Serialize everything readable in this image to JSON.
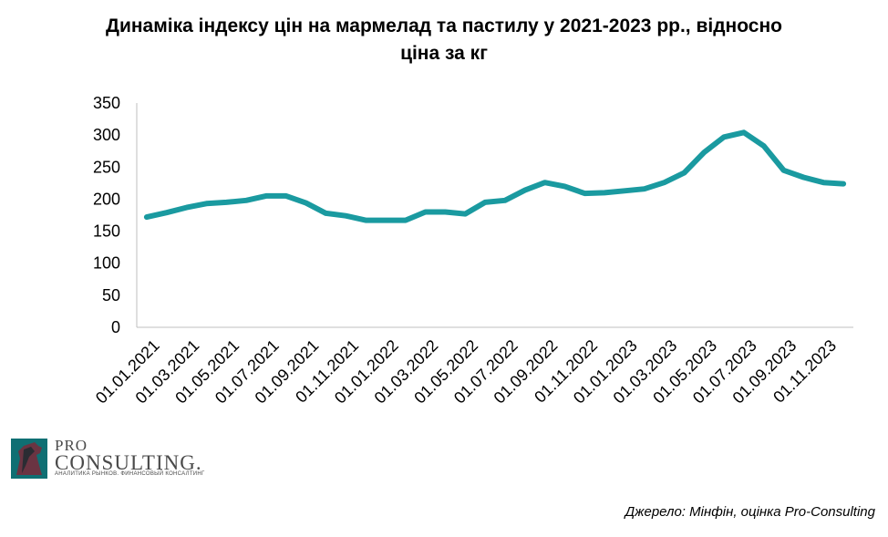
{
  "title_line1": "Динаміка індексу цін на мармелад та пастилу у 2021-2023 рр., відносно",
  "title_line2": "ціна за кг",
  "source": "Джерело: Мінфін, оцінка Pro-Consulting",
  "logo": {
    "line1": "PRO",
    "line2": "CONSULTING.",
    "tagline": "АНАЛИТИКА РЫНКОВ. ФИНАНСОВЫЙ КОНСАЛТИНГ"
  },
  "colors": {
    "line": "#1a9aa0",
    "axis": "#bfbfbf",
    "logo_accent": "#0f6f73"
  },
  "chart_data": {
    "type": "line",
    "title": "Динаміка індексу цін на мармелад та пастилу у 2021-2023 рр., відносно ціна за кг",
    "ylim": [
      0,
      350
    ],
    "yticks": [
      0,
      50,
      100,
      150,
      200,
      250,
      300,
      350
    ],
    "grid": false,
    "x": [
      "01.01.2021",
      "01.02.2021",
      "01.03.2021",
      "01.04.2021",
      "01.05.2021",
      "01.06.2021",
      "01.07.2021",
      "01.08.2021",
      "01.09.2021",
      "01.10.2021",
      "01.11.2021",
      "01.12.2021",
      "01.01.2022",
      "01.02.2022",
      "01.03.2022",
      "01.04.2022",
      "01.05.2022",
      "01.06.2022",
      "01.07.2022",
      "01.08.2022",
      "01.09.2022",
      "01.10.2022",
      "01.11.2022",
      "01.12.2022",
      "01.01.2023",
      "01.02.2023",
      "01.03.2023",
      "01.04.2023",
      "01.05.2023",
      "01.06.2023",
      "01.07.2023",
      "01.08.2023",
      "01.09.2023",
      "01.10.2023",
      "01.11.2023",
      "01.12.2023"
    ],
    "x_tick_labels": [
      "01.01.2021",
      "01.03.2021",
      "01.05.2021",
      "01.07.2021",
      "01.09.2021",
      "01.11.2021",
      "01.01.2022",
      "01.03.2022",
      "01.05.2022",
      "01.07.2022",
      "01.09.2022",
      "01.11.2022",
      "01.01.2023",
      "01.03.2023",
      "01.05.2023",
      "01.07.2023",
      "01.09.2023",
      "01.11.2023"
    ],
    "series": [
      {
        "values": [
          172,
          179,
          187,
          193,
          195,
          198,
          205,
          205,
          194,
          178,
          174,
          167,
          167,
          167,
          180,
          180,
          177,
          195,
          198,
          214,
          226,
          220,
          209,
          210,
          213,
          216,
          226,
          241,
          273,
          297,
          304,
          283,
          245,
          234,
          226,
          224
        ]
      }
    ]
  }
}
